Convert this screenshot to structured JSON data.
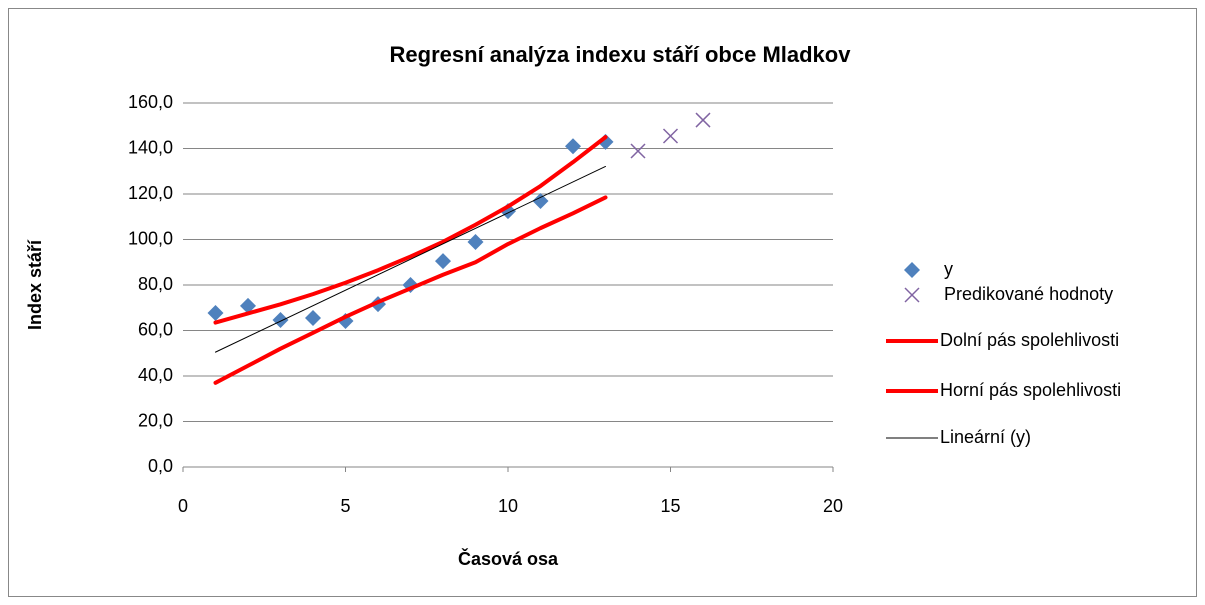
{
  "chart_data": {
    "type": "scatter",
    "title": "Regresní analýza indexu stáří obce Mladkov",
    "xlabel": "Časová osa",
    "ylabel": "Index stáří",
    "xlim": [
      0,
      20
    ],
    "xticks": [
      0,
      5,
      10,
      15,
      20
    ],
    "ylim": [
      0,
      160
    ],
    "yticks": [
      {
        "value": 0,
        "label": "0,0"
      },
      {
        "value": 20,
        "label": "20,0"
      },
      {
        "value": 40,
        "label": "40,0"
      },
      {
        "value": 60,
        "label": "60,0"
      },
      {
        "value": 80,
        "label": "80,0"
      },
      {
        "value": 100,
        "label": "100,0"
      },
      {
        "value": 120,
        "label": "120,0"
      },
      {
        "value": 140,
        "label": "140,0"
      },
      {
        "value": 160,
        "label": "160,0"
      }
    ],
    "grid": true,
    "legend": "right",
    "series": [
      {
        "name": "y",
        "color": "#4f81bd",
        "marker": "diamond",
        "x": [
          1,
          2,
          3,
          4,
          5,
          6,
          7,
          8,
          9,
          10,
          11,
          12,
          13
        ],
        "values": [
          67.7,
          70.8,
          64.6,
          65.5,
          64.2,
          71.6,
          80.0,
          90.5,
          98.9,
          112.5,
          116.9,
          141.0,
          142.9
        ]
      },
      {
        "name": "Predikované hodnoty",
        "color": "#8064a2",
        "marker": "x",
        "x": [
          14,
          15,
          16
        ],
        "values": [
          138.9,
          145.5,
          152.5
        ]
      },
      {
        "name": "Dolní pás spolehlivosti",
        "color": "#ff0000",
        "marker": "line",
        "line_width": 4,
        "x": [
          1,
          2,
          3,
          4,
          5,
          6,
          7,
          8,
          9,
          10,
          11,
          12,
          13
        ],
        "values": [
          37.0,
          44.5,
          52.0,
          59.0,
          66.0,
          72.5,
          78.5,
          84.5,
          90.0,
          98.0,
          105.0,
          111.5,
          118.5
        ]
      },
      {
        "name": "Horní pás spolehlivosti",
        "color": "#ff0000",
        "marker": "line",
        "line_width": 4,
        "x": [
          1,
          2,
          3,
          4,
          5,
          6,
          7,
          8,
          9,
          10,
          11,
          12,
          13
        ],
        "values": [
          63.5,
          67.5,
          71.5,
          76.0,
          81.0,
          86.5,
          92.5,
          99.0,
          106.5,
          114.5,
          123.5,
          134.0,
          145.0
        ]
      },
      {
        "name": "Lineární (y)",
        "color": "#000000",
        "marker": "line",
        "line_width": 1,
        "x": [
          1,
          13
        ],
        "values": [
          50.5,
          132.1
        ]
      }
    ]
  }
}
